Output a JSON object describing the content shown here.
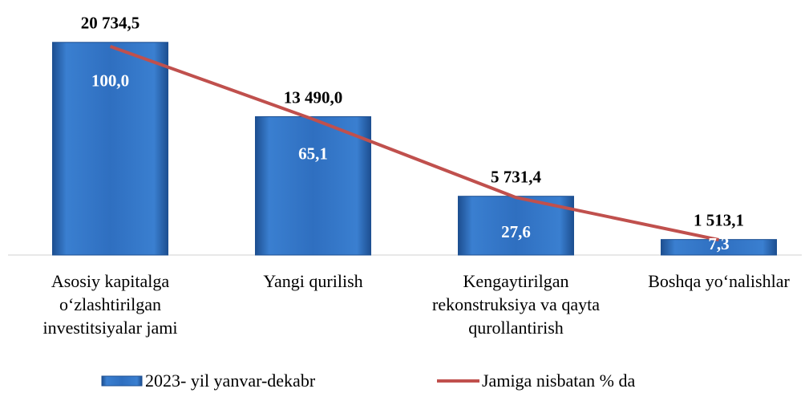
{
  "chart_data": {
    "type": "bar_line",
    "categories": [
      "Asosiy kapitalga o‘zlashtirilgan investitsiyalar jami",
      "Yangi qurilish",
      "Kengaytirilgan rekonstruksiya va qayta qurollantirish",
      "Boshqa yo‘nalishlar"
    ],
    "series": [
      {
        "name": "2023- yil yanvar-dekabr",
        "type": "bar",
        "color": "#2f6fc0",
        "values": [
          20734.5,
          13490.0,
          5731.4,
          1513.1
        ],
        "value_labels": [
          "20 734,5",
          "13 490,0",
          "5 731,4",
          "1 513,1"
        ]
      },
      {
        "name": "Jamiga nisbatan % da",
        "type": "line",
        "axis": "y2",
        "color": "#c0504d",
        "values": [
          100.0,
          65.1,
          27.6,
          7.3
        ],
        "value_labels": [
          "100,0",
          "65,1",
          "27,6",
          "7,3"
        ]
      }
    ],
    "ylim": [
      0,
      24000
    ],
    "y2lim": [
      0,
      118
    ],
    "legend": "bottom"
  }
}
